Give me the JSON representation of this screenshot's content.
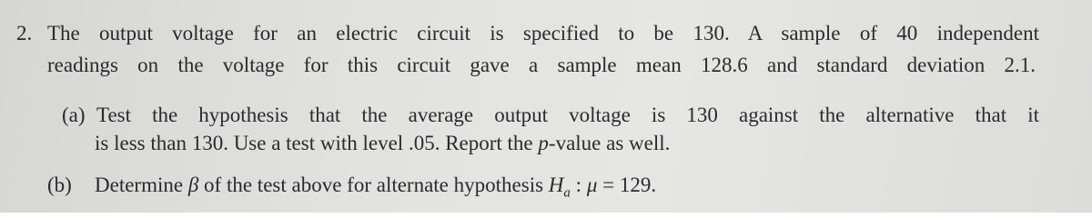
{
  "problem": {
    "number": "2.",
    "lines": [
      "The output voltage for an electric circuit is specified to be 130. A sample of 40 independent",
      "readings on the voltage for this circuit gave a sample mean 128.6 and standard deviation 2.1."
    ],
    "parts": [
      {
        "label": "(a)",
        "lines": [
          [
            "Test the hypothesis that the average output voltage is 130 against the alternative that it"
          ],
          [
            "is less than 130. Use a test with level .05. Report the ",
            "p",
            "-value as well."
          ]
        ]
      },
      {
        "label": "(b)",
        "lines": [
          [
            "Determine ",
            "β",
            " of the test above for alternate hypothesis ",
            "H",
            "a",
            " : ",
            "μ",
            " = 129."
          ]
        ]
      }
    ]
  }
}
